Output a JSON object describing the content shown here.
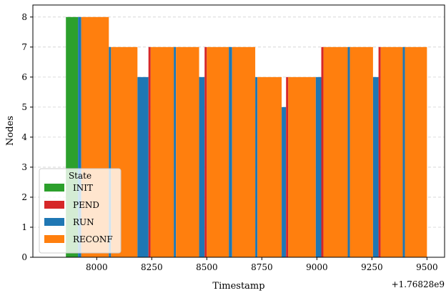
{
  "chart_data": {
    "type": "bar",
    "xlabel": "Timestamp",
    "ylabel": "Nodes",
    "x_offset_label": "+1.76828e9",
    "xlim": [
      7710,
      9580
    ],
    "ylim": [
      0,
      8.4
    ],
    "x_ticks": [
      8000,
      8250,
      8500,
      8750,
      9000,
      9250,
      9500
    ],
    "y_ticks": [
      0,
      1,
      2,
      3,
      4,
      5,
      6,
      7,
      8
    ],
    "grid": "y dashed",
    "legend": {
      "title": "State",
      "position": "lower-left",
      "entries": [
        "INIT",
        "PEND",
        "RUN",
        "RECONF"
      ]
    },
    "colors": {
      "INIT": "#2ca02c",
      "PEND": "#d62728",
      "RUN": "#1f77b4",
      "RECONF": "#ff7f0e"
    },
    "bars": [
      {
        "state": "INIT",
        "start": 7860,
        "end": 7915,
        "nodes": 8
      },
      {
        "state": "RUN",
        "start": 7915,
        "end": 7930,
        "nodes": 8
      },
      {
        "state": "RECONF",
        "start": 7930,
        "end": 8055,
        "nodes": 8
      },
      {
        "state": "RUN",
        "start": 8055,
        "end": 8065,
        "nodes": 7
      },
      {
        "state": "RECONF",
        "start": 8065,
        "end": 8185,
        "nodes": 7
      },
      {
        "state": "RUN",
        "start": 8185,
        "end": 8235,
        "nodes": 6
      },
      {
        "state": "PEND",
        "start": 8235,
        "end": 8245,
        "nodes": 7
      },
      {
        "state": "RECONF",
        "start": 8245,
        "end": 8350,
        "nodes": 7
      },
      {
        "state": "RUN",
        "start": 8350,
        "end": 8360,
        "nodes": 7
      },
      {
        "state": "RECONF",
        "start": 8360,
        "end": 8465,
        "nodes": 7
      },
      {
        "state": "RUN",
        "start": 8465,
        "end": 8490,
        "nodes": 6
      },
      {
        "state": "PEND",
        "start": 8490,
        "end": 8500,
        "nodes": 7
      },
      {
        "state": "RECONF",
        "start": 8500,
        "end": 8600,
        "nodes": 7
      },
      {
        "state": "RUN",
        "start": 8600,
        "end": 8615,
        "nodes": 7
      },
      {
        "state": "RECONF",
        "start": 8615,
        "end": 8720,
        "nodes": 7
      },
      {
        "state": "RUN",
        "start": 8720,
        "end": 8730,
        "nodes": 6
      },
      {
        "state": "RECONF",
        "start": 8730,
        "end": 8840,
        "nodes": 6
      },
      {
        "state": "RUN",
        "start": 8840,
        "end": 8860,
        "nodes": 5
      },
      {
        "state": "PEND",
        "start": 8860,
        "end": 8870,
        "nodes": 6
      },
      {
        "state": "RECONF",
        "start": 8870,
        "end": 8995,
        "nodes": 6
      },
      {
        "state": "RUN",
        "start": 8995,
        "end": 9020,
        "nodes": 6
      },
      {
        "state": "PEND",
        "start": 9020,
        "end": 9030,
        "nodes": 7
      },
      {
        "state": "RECONF",
        "start": 9030,
        "end": 9140,
        "nodes": 7
      },
      {
        "state": "RUN",
        "start": 9140,
        "end": 9150,
        "nodes": 7
      },
      {
        "state": "RECONF",
        "start": 9150,
        "end": 9255,
        "nodes": 7
      },
      {
        "state": "RUN",
        "start": 9255,
        "end": 9280,
        "nodes": 6
      },
      {
        "state": "PEND",
        "start": 9280,
        "end": 9290,
        "nodes": 7
      },
      {
        "state": "RECONF",
        "start": 9290,
        "end": 9390,
        "nodes": 7
      },
      {
        "state": "RUN",
        "start": 9390,
        "end": 9400,
        "nodes": 7
      },
      {
        "state": "RECONF",
        "start": 9400,
        "end": 9500,
        "nodes": 7
      }
    ]
  }
}
